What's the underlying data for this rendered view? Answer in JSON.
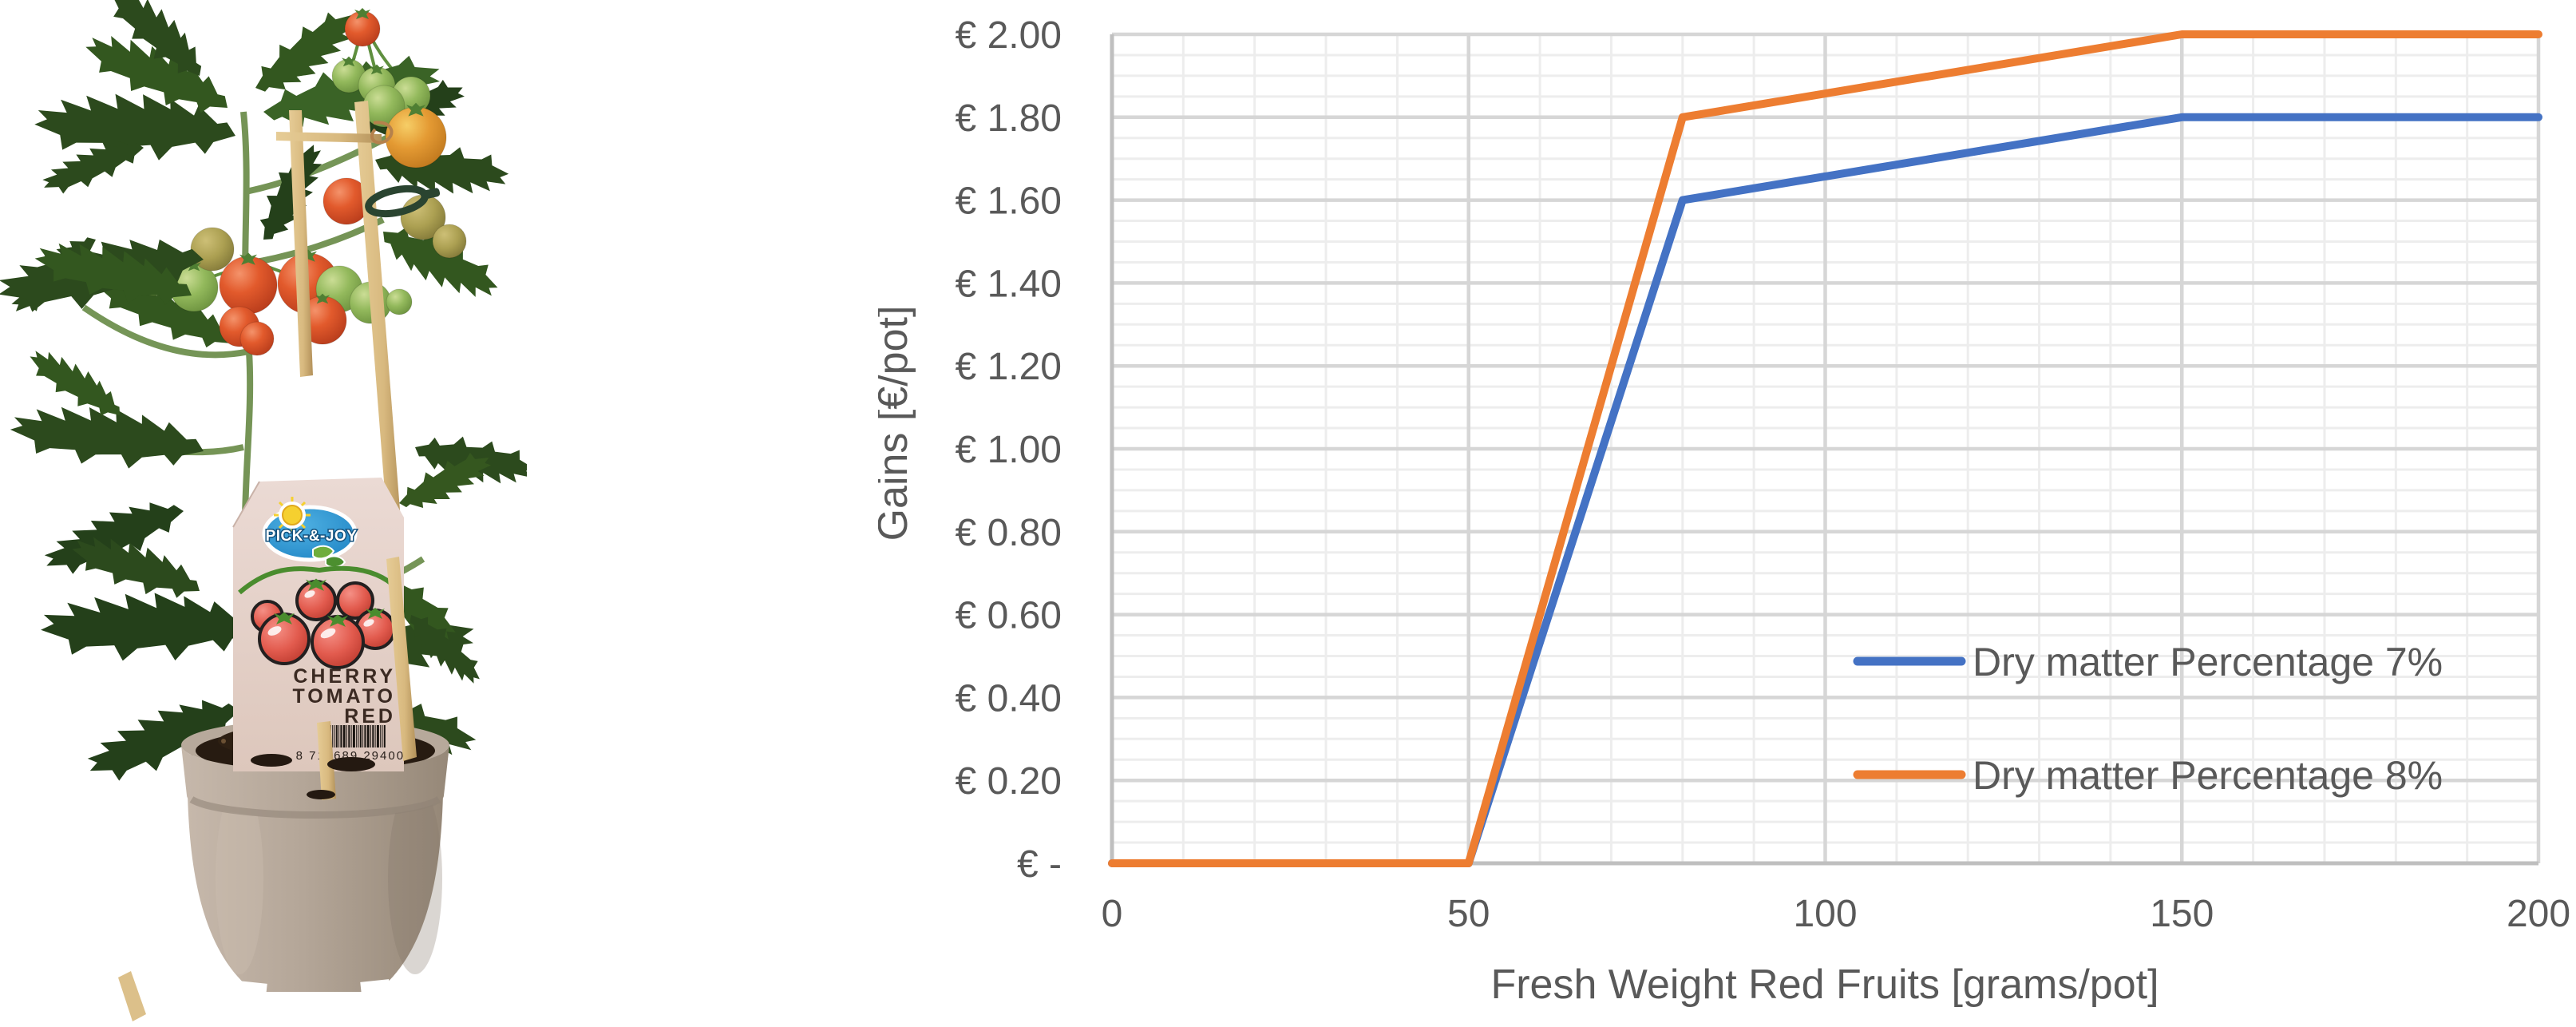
{
  "photo": {
    "description": "Potted cherry tomato plant with wooden stakes and label tag",
    "tag": {
      "brand": "PICK-&-JOY",
      "line1": "CHERRY",
      "line2": "TOMATO",
      "line3": "RED",
      "barcode_number": "8 719689 294007"
    },
    "colors": {
      "pot": "#B4A698",
      "soil": "#271B11",
      "foliage": "#2C4A1D",
      "tomato_red": "#D9542B",
      "tomato_orange": "#E2A13C",
      "tomato_green": "#8FB958",
      "stake": "#D8B97F",
      "tag_background": "#E8D6CE",
      "logo_blue": "#2E9BD8"
    }
  },
  "chart_data": {
    "type": "line",
    "title": "",
    "xlabel": "Fresh Weight Red Fruits [grams/pot]",
    "ylabel": "Gains [€/pot]",
    "xlim": [
      0,
      200
    ],
    "ylim": [
      0,
      2.0
    ],
    "x_major_ticks": [
      0,
      50,
      100,
      150,
      200
    ],
    "x_minor_step": 10,
    "y_major_step": 0.2,
    "y_minor_step": 0.05,
    "y_tick_labels": [
      "€ -",
      "€ 0.20",
      "€ 0.40",
      "€ 0.60",
      "€ 0.80",
      "€ 1.00",
      "€ 1.20",
      "€ 1.40",
      "€ 1.60",
      "€ 1.80",
      "€ 2.00"
    ],
    "grid": true,
    "legend": {
      "position": "inside-right"
    },
    "series": [
      {
        "name": "Dry matter Percentage 7%",
        "color": "#4472C4",
        "points": [
          [
            0,
            0
          ],
          [
            50,
            0
          ],
          [
            80,
            1.6
          ],
          [
            150,
            1.8
          ],
          [
            200,
            1.8
          ]
        ]
      },
      {
        "name": "Dry matter Percentage 8%",
        "color": "#ED7D31",
        "points": [
          [
            0,
            0
          ],
          [
            50,
            0
          ],
          [
            80,
            1.8
          ],
          [
            150,
            2.0
          ],
          [
            200,
            2.0
          ]
        ]
      }
    ],
    "styles": {
      "text_color": "#595959",
      "major_grid": "#D6D6D6",
      "minor_grid": "#EDEDED",
      "axis_line": "#BFBFBF",
      "line_width": 10,
      "tick_font": 48,
      "title_font": 52,
      "legend_font": 50
    }
  }
}
